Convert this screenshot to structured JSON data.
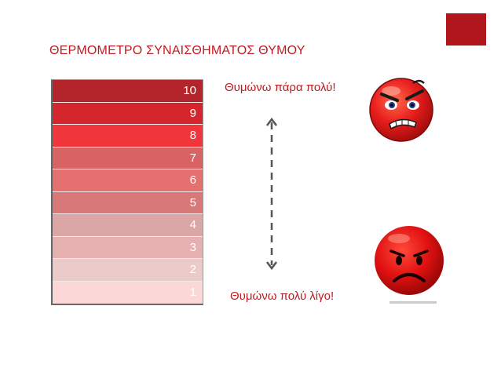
{
  "title": "ΘΕΡΜΟΜΕΤΡΟ ΣΥΝΑΙΣΘΗΜΑΤΟΣ ΘΥΜΟΥ",
  "scale": {
    "levels": [
      {
        "value": "10",
        "color": "#b3252a"
      },
      {
        "value": "9",
        "color": "#d6262d"
      },
      {
        "value": "8",
        "color": "#f0353b"
      },
      {
        "value": "7",
        "color": "#d76363"
      },
      {
        "value": "6",
        "color": "#e47070"
      },
      {
        "value": "5",
        "color": "#d97878"
      },
      {
        "value": "4",
        "color": "#dba6a6"
      },
      {
        "value": "3",
        "color": "#e7b0b0"
      },
      {
        "value": "2",
        "color": "#ebcaca"
      },
      {
        "value": "1",
        "color": "#fbd7d7"
      }
    ]
  },
  "labels": {
    "top": "Θυμώνω πάρα πολύ!",
    "bottom": "Θυμώνω πολύ λίγο!"
  },
  "icons": {
    "arrow": "double-arrow-vertical-icon",
    "face_very_angry": "very-angry-face-icon",
    "face_angry": "angry-face-icon"
  },
  "colors": {
    "accent": "#c0191f",
    "corner": "#b0161c"
  }
}
